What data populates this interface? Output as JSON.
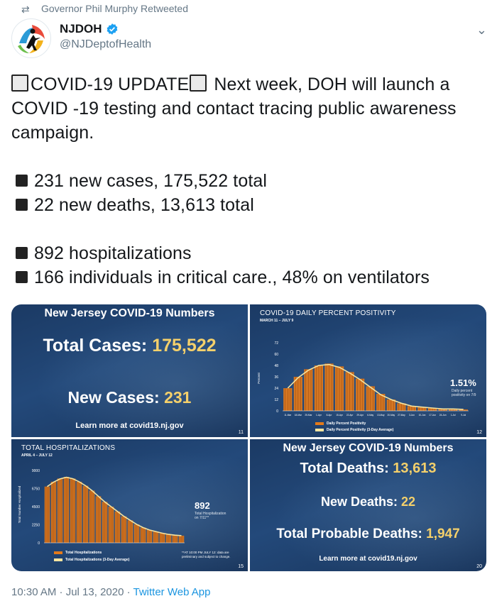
{
  "retweet": {
    "text": "Governor Phil Murphy Retweeted",
    "icon": "retweet-icon"
  },
  "author": {
    "name": "NJDOH",
    "handle": "@NJDeptofHealth",
    "verified": true,
    "verified_color": "#1da1f2"
  },
  "tweet": {
    "heading_label": "COVID-19 UPDATE",
    "heading_rest": " Next week, DOH will launch a COVID -19 testing and contact tracing public awareness campaign.",
    "bullets_a": [
      "231 new cases, 175,522 total",
      "22 new deaths, 13,613 total"
    ],
    "bullets_b": [
      "892 hospitalizations",
      "166 individuals in critical care., 48% on ventilators"
    ]
  },
  "panel1": {
    "title": "New Jersey COVID-19 Numbers",
    "total_label": "Total Cases: ",
    "total_value": "175,522",
    "new_label": "New Cases: ",
    "new_value": "231",
    "learn": "Learn more at covid19.nj.gov",
    "page": "11"
  },
  "panel2": {
    "title": "COVID-19 DAILY PERCENT POSITIVITY",
    "subtitle": "MARCH 11 – JULY 9",
    "callout_value": "1.51%",
    "callout_label_1": "Daily percent",
    "callout_label_2": "positivity on 7/9",
    "legend_1": "Daily Percent Positivity",
    "legend_2": "Daily Percent Positivity (3-Day Average)",
    "page": "12"
  },
  "panel3": {
    "title": "TOTAL HOSPITALIZATIONS",
    "subtitle": "APRIL 4 – JULY 12",
    "callout_value": "892",
    "callout_label_1": "Total Hospitalization",
    "callout_label_2": "on 7/11**",
    "legend_1": "Total Hospitalizations",
    "legend_2": "Total Hospitalizations (3-Day Average)",
    "footnote_1": "**AT 10:00 PM JULY 12: data are",
    "footnote_2": "preliminary and subject to change.",
    "page": "15"
  },
  "panel4": {
    "title": "New Jersey COVID-19 Numbers",
    "deaths_label": "Total Deaths: ",
    "deaths_value": "13,613",
    "new_label": "New Deaths: ",
    "new_value": "22",
    "probable_label": "Total Probable Deaths: ",
    "probable_value": "1,947",
    "learn": "Learn more at covid19.nj.gov",
    "page": "20"
  },
  "chart_data": [
    {
      "type": "bar",
      "title": "COVID-19 DAILY PERCENT POSITIVITY",
      "subtitle": "MARCH 11 – JULY 9",
      "ylabel": "Percent",
      "yticks": [
        "72",
        "60",
        "48",
        "36",
        "24",
        "12",
        "0"
      ],
      "ylim": [
        0,
        72
      ],
      "x": [
        "11-Mar",
        "18-Mar",
        "25-Mar",
        "1-Apr",
        "8-Apr",
        "15-Apr",
        "22-Apr",
        "29-Apr",
        "6-May",
        "13-May",
        "20-May",
        "27-May",
        "3-Jun",
        "10-Jun",
        "17-Jun",
        "24-Jun",
        "1-Jul",
        "9-Jul"
      ],
      "series": [
        {
          "name": "Daily Percent Positivity",
          "values": [
            24,
            36,
            44,
            48,
            50,
            47,
            41,
            34,
            26,
            18,
            12,
            8,
            5,
            4,
            3,
            2,
            2,
            1.5
          ]
        },
        {
          "name": "Daily Percent Positivity (3-Day Average)",
          "values": [
            24,
            35,
            43,
            48,
            49,
            46,
            40,
            33,
            25,
            17,
            12,
            8,
            5,
            4,
            3,
            2,
            2,
            1.6
          ]
        }
      ],
      "colors": {
        "bars": "#e37a1a",
        "average": "#f5e4a0"
      }
    },
    {
      "type": "bar",
      "title": "TOTAL HOSPITALIZATIONS",
      "subtitle": "APRIL 4 – JULY 12",
      "ylabel": "Total Number Hospitalized",
      "yticks": [
        "9000",
        "6750",
        "4500",
        "2250",
        "0"
      ],
      "ylim": [
        0,
        9000
      ],
      "series": [
        {
          "name": "Total Hospitalizations",
          "values": [
            7000,
            7600,
            8000,
            8200,
            8000,
            7600,
            7100,
            6500,
            5800,
            5100,
            4500,
            3900,
            3300,
            2800,
            2300,
            1900,
            1600,
            1400,
            1200,
            1050,
            950,
            892
          ]
        },
        {
          "name": "Total Hospitalizations (3-Day Average)",
          "values": [
            7000,
            7550,
            7950,
            8150,
            7980,
            7600,
            7100,
            6500,
            5800,
            5100,
            4500,
            3900,
            3300,
            2800,
            2300,
            1900,
            1600,
            1400,
            1200,
            1050,
            950,
            900
          ]
        }
      ],
      "colors": {
        "bars": "#e37a1a",
        "average": "#f5e4a0"
      }
    }
  ],
  "footer": {
    "time": "10:30 AM · Jul 13, 2020 · ",
    "app": "Twitter Web App"
  },
  "colors": {
    "text": "#14171a",
    "muted": "#657786",
    "link": "#1b95e0",
    "panel": "#1f4270",
    "highlight": "#f4d06b"
  }
}
